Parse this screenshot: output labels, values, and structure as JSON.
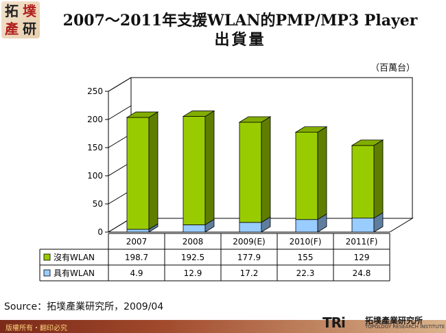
{
  "logo": {
    "chars": [
      "拓",
      "墣",
      "產",
      "研"
    ]
  },
  "title": {
    "line1": "2007～2011年支援WLAN的PMP/MP3 Player",
    "line2": "出貨量"
  },
  "unit_note": "（百萬台）",
  "source": "Source：拓墣產業研究所，2009/04",
  "copyright": "版權所有・翻印必究",
  "brand": {
    "mark": "TRi",
    "name_cn": "拓墣產業研究所",
    "name_en": "TOPOLOGY RESEARCH INSTITUTE"
  },
  "colors": {
    "green": "#99cc00",
    "blue": "#99ccff",
    "footer": "#8b3a1f"
  },
  "chart_data": {
    "type": "bar",
    "stacked": true,
    "three_d": true,
    "categories": [
      "2007",
      "2008",
      "2009(E)",
      "2010(F)",
      "2011(F)"
    ],
    "series": [
      {
        "name": "沒有WLAN",
        "values": [
          198.7,
          192.5,
          177.9,
          155,
          129
        ],
        "value_labels": [
          "198.7",
          "192.5",
          "177.9",
          "155",
          "129"
        ],
        "color": "#99cc00"
      },
      {
        "name": "具有WLAN",
        "values": [
          4.9,
          12.9,
          17.2,
          22.3,
          24.8
        ],
        "value_labels": [
          "4.9",
          "12.9",
          "17.2",
          "22.3",
          "24.8"
        ],
        "color": "#99ccff"
      }
    ],
    "ylim": [
      0,
      250
    ],
    "yticks": [
      0,
      50,
      100,
      150,
      200,
      250
    ],
    "ytick_labels": [
      "0",
      "50",
      "100",
      "150",
      "200",
      "250"
    ],
    "grid": false,
    "legend": "data-table"
  }
}
